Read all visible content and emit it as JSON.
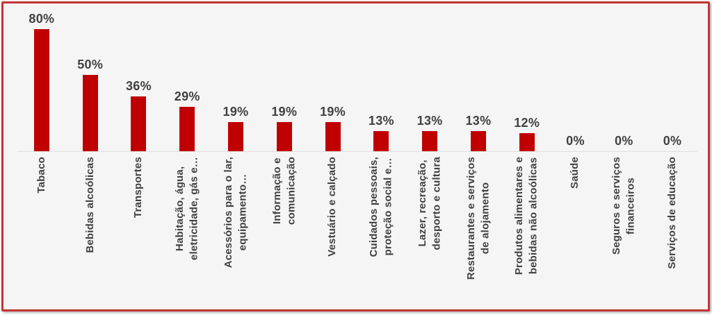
{
  "chart_data": {
    "type": "bar",
    "title": "",
    "xlabel": "",
    "ylabel": "",
    "categories": [
      "Tabaco",
      "Bebidas alcoólicas",
      "Transportes",
      "Habitação, água,\neletricidade, gás e…",
      "Acessórios para o lar,\nequipamento…",
      "Informação e\ncomunicação",
      "Vestuário e calçado",
      "Cuidados pessoais,\nproteção social e…",
      "Lazer, recreação,\ndesporto e cultura",
      "Restaurantes e serviços\nde alojamento",
      "Produtos alimentares e\nbebidas não alcoólicas",
      "Saúde",
      "Seguros e serviços\nfinanceiros",
      "Serviços de educação"
    ],
    "values": [
      80,
      50,
      36,
      29,
      19,
      19,
      19,
      13,
      13,
      13,
      12,
      0,
      0,
      0
    ],
    "value_labels": [
      "80%",
      "50%",
      "36%",
      "29%",
      "19%",
      "19%",
      "19%",
      "13%",
      "13%",
      "13%",
      "12%",
      "0%",
      "0%",
      "0%"
    ],
    "ylim": [
      0,
      97
    ],
    "grid": false,
    "legend_position": "none",
    "data_labels": true,
    "category_label_rotation_deg": 90,
    "colors": {
      "bar": "#C00000",
      "frame_border": "#C23335",
      "plot_background": "#F5F5F5",
      "text": "#404040",
      "baseline": "#C9C9C9"
    }
  }
}
